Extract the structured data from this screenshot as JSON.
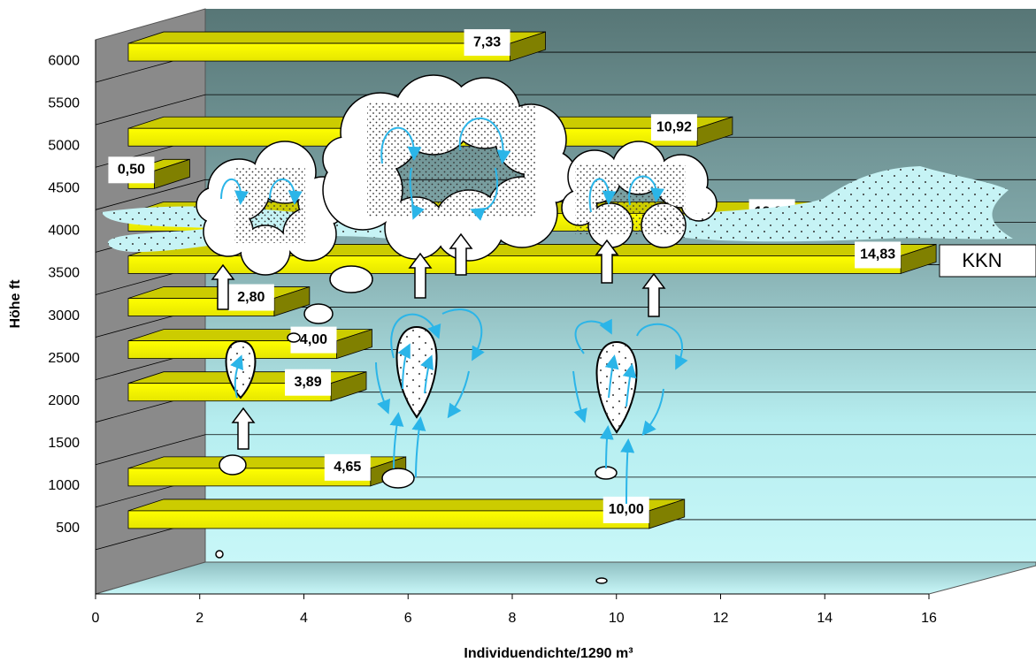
{
  "chart_data": {
    "type": "bar3d",
    "xlabel": "Individuendichte/1290 m³",
    "ylabel": "Höhe ft",
    "annotation": "KKN",
    "altitudes": [
      500,
      1000,
      2000,
      2500,
      3000,
      3500,
      4000,
      4500,
      5000,
      6000
    ],
    "values": [
      10.0,
      4.65,
      3.89,
      4.0,
      2.8,
      14.83,
      12.8,
      0.5,
      10.92,
      7.33
    ],
    "value_labels": [
      "10,00",
      "4,65",
      "3,89",
      "4,00",
      "2,80",
      "14,83",
      "12,80",
      "0,50",
      "10,92",
      "7,33"
    ],
    "color": "#ffff00",
    "xlim": [
      0,
      16
    ],
    "xticks": [
      0,
      2,
      4,
      6,
      8,
      10,
      12,
      14,
      16
    ],
    "ylim": [
      0,
      6500
    ],
    "yticks": [
      500,
      1000,
      1500,
      2000,
      2500,
      3000,
      3500,
      4000,
      4500,
      5000,
      5500,
      6000
    ],
    "grid": true
  }
}
